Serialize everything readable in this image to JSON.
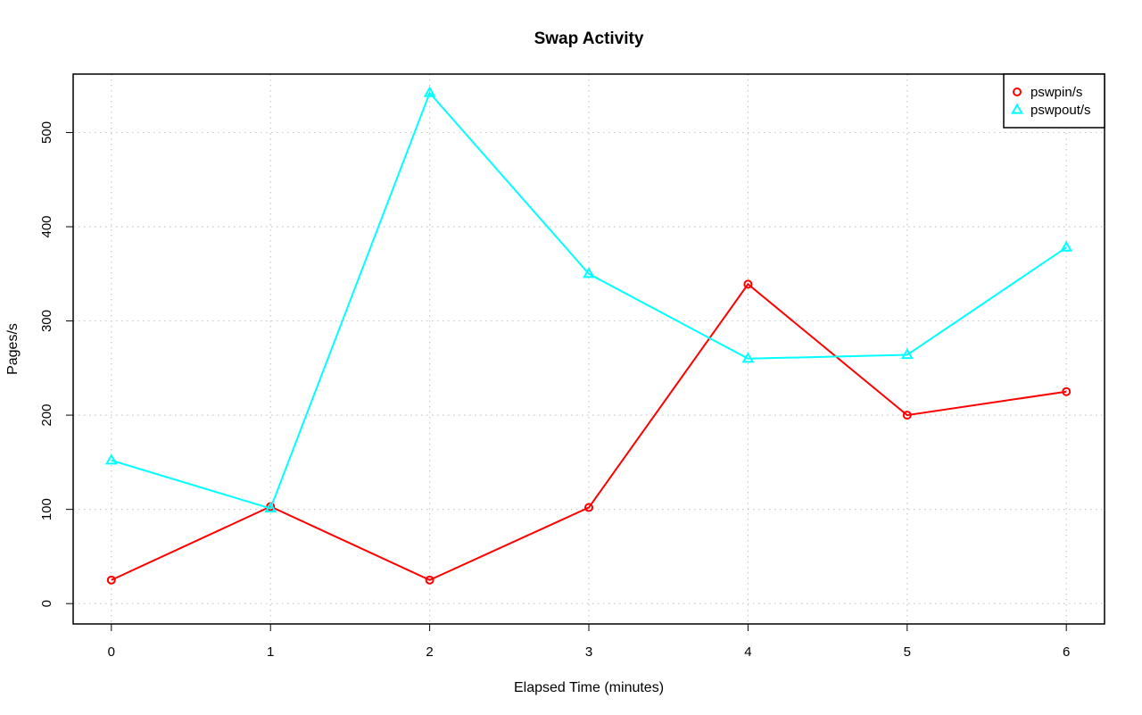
{
  "chart_data": {
    "type": "line",
    "title": "Swap Activity",
    "xlabel": "Elapsed Time (minutes)",
    "ylabel": "Pages/s",
    "x": [
      0,
      1,
      2,
      3,
      4,
      5,
      6
    ],
    "xlim": [
      -0.24,
      6.24
    ],
    "ylim": [
      -21.6,
      562.0
    ],
    "x_ticks": [
      0,
      1,
      2,
      3,
      4,
      5,
      6
    ],
    "y_ticks": [
      0,
      100,
      200,
      300,
      400,
      500
    ],
    "grid": true,
    "legend_position": "top-right",
    "series": [
      {
        "name": "pswpin/s",
        "color": "#ff0000",
        "marker": "circle",
        "values": [
          25,
          103,
          25,
          102,
          339,
          200,
          225
        ]
      },
      {
        "name": "pswpout/s",
        "color": "#00ffff",
        "marker": "triangle",
        "values": [
          152,
          101,
          542,
          350,
          260,
          264,
          378
        ]
      }
    ]
  }
}
